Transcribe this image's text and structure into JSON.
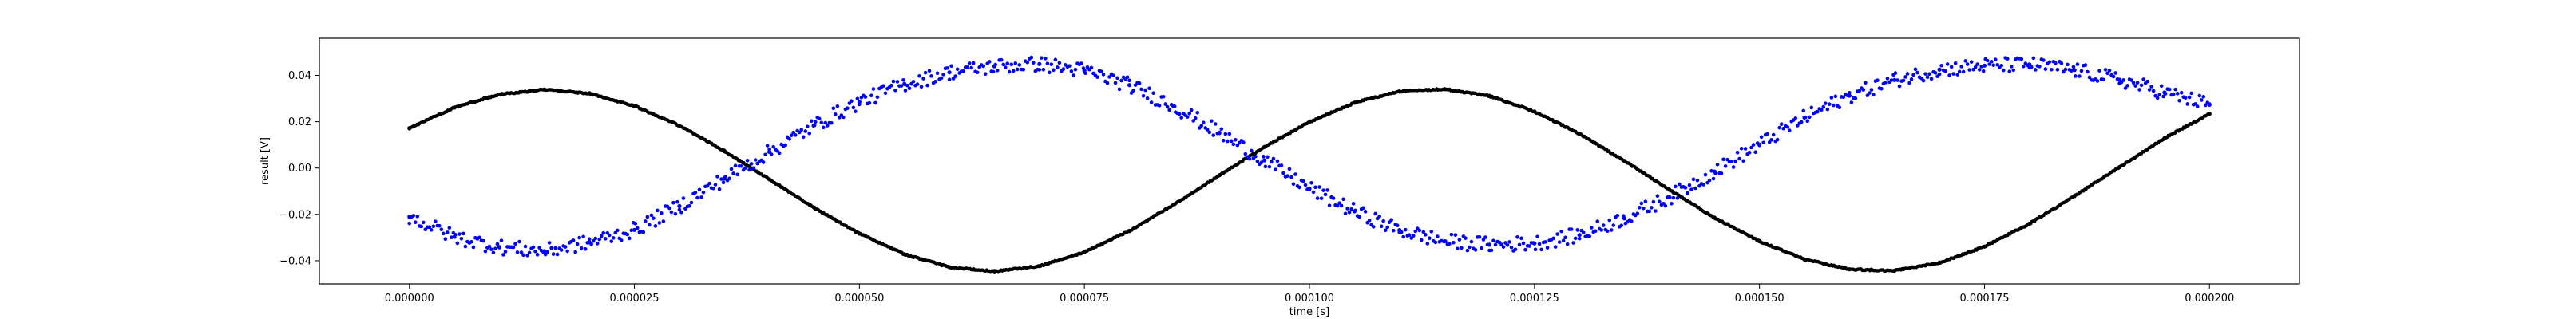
{
  "chart_data": {
    "type": "scatter",
    "title": "",
    "xlabel": "time [s]",
    "ylabel": "result [V]",
    "xlim": [
      -1e-05,
      0.00021
    ],
    "ylim": [
      -0.05,
      0.056
    ],
    "grid": false,
    "xticks": [
      0.0,
      2.5e-05,
      5e-05,
      7.5e-05,
      0.0001,
      0.000125,
      0.00015,
      0.000175,
      0.0002
    ],
    "xtick_labels": [
      "0.000000",
      "0.000025",
      "0.000050",
      "0.000075",
      "0.000100",
      "0.000125",
      "0.000150",
      "0.000175",
      "0.000200"
    ],
    "yticks": [
      -0.04,
      -0.02,
      0.0,
      0.02,
      0.04
    ],
    "ytick_labels": [
      "−0.04",
      "−0.02",
      "0.00",
      "0.02",
      "0.04"
    ],
    "series": [
      {
        "color": "#000000",
        "marker": "dense-dots",
        "x": [
          0.0,
          5e-06,
          1e-05,
          1.5e-05,
          2e-05,
          2.5e-05,
          3e-05,
          3.5e-05,
          4e-05,
          4.5e-05,
          5e-05,
          5.5e-05,
          6e-05,
          6.5e-05,
          7e-05,
          7.5e-05,
          8e-05,
          8.5e-05,
          9e-05,
          9.5e-05,
          0.0001,
          0.000105,
          0.00011,
          0.000115,
          0.00012,
          0.000125,
          0.00013,
          0.000135,
          0.00014,
          0.000145,
          0.00015,
          0.000155,
          0.00016,
          0.000165,
          0.00017,
          0.000175,
          0.00018,
          0.000185,
          0.00019,
          0.000195,
          0.0002
        ],
        "y": [
          0.0172,
          0.0261,
          0.0318,
          0.0339,
          0.0322,
          0.0268,
          0.0183,
          0.0073,
          -0.0049,
          -0.0172,
          -0.0283,
          -0.0372,
          -0.0428,
          -0.0446,
          -0.0423,
          -0.0363,
          -0.0271,
          -0.0156,
          -0.0031,
          0.0091,
          0.0199,
          0.0282,
          0.0331,
          0.0341,
          0.0311,
          0.0244,
          0.0148,
          0.0031,
          -0.0094,
          -0.0214,
          -0.0316,
          -0.0394,
          -0.0437,
          -0.0443,
          -0.0409,
          -0.0339,
          -0.024,
          -0.0121,
          0.0004,
          0.0129,
          0.0234
        ]
      },
      {
        "color": "#0000ff",
        "marker": "scattered-dots",
        "x": [
          0.0,
          5e-06,
          1e-05,
          1.5e-05,
          2e-05,
          2.5e-05,
          3e-05,
          3.5e-05,
          4e-05,
          4.5e-05,
          5e-05,
          5.5e-05,
          6e-05,
          6.5e-05,
          7e-05,
          7.5e-05,
          8e-05,
          8.5e-05,
          9e-05,
          9.5e-05,
          0.0001,
          0.000105,
          0.00011,
          0.000115,
          0.00012,
          0.000125,
          0.00013,
          0.000135,
          0.00014,
          0.000145,
          0.00015,
          0.000155,
          0.00016,
          0.000165,
          0.00017,
          0.000175,
          0.00018,
          0.000185,
          0.00019,
          0.000195,
          0.0002
        ],
        "y": [
          -0.021,
          -0.0297,
          -0.0341,
          -0.0359,
          -0.0321,
          -0.0267,
          -0.0164,
          -0.0046,
          0.007,
          0.0185,
          0.0285,
          0.0363,
          0.0413,
          0.0439,
          0.0449,
          0.0421,
          0.0358,
          0.0266,
          0.0151,
          0.0033,
          -0.0088,
          -0.0187,
          -0.0268,
          -0.0316,
          -0.0331,
          -0.0325,
          -0.0289,
          -0.0217,
          -0.0126,
          -0.0015,
          0.0101,
          0.0218,
          0.0312,
          0.038,
          0.0425,
          0.0442,
          0.0447,
          0.0423,
          0.0381,
          0.0326,
          0.0273
        ]
      }
    ]
  }
}
